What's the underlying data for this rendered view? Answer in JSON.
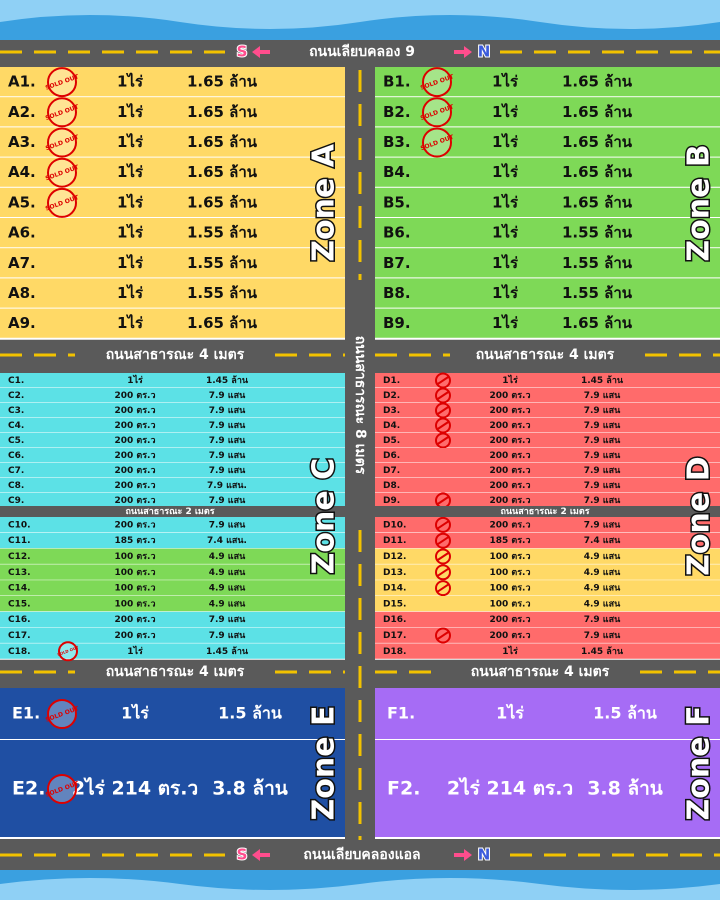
{
  "top_road": {
    "name": "ถนนเลียบคลอง 9"
  },
  "bottom_road": {
    "name": "ถนนเลียบคลองแอล"
  },
  "south": "S",
  "north": "N",
  "roads": {
    "public_4m": "ถนนสาธารณะ 4 เมตร",
    "public_8m": "ถนนสาธารณะ 8 เมตร",
    "public_2m": "ถนนสาธารณะ 2 เมตร"
  },
  "stamp": "SOLD OUT",
  "zones": [
    {
      "label": "Zone A",
      "color": "#ffd966",
      "blocks": [
        [
          {
            "lot": "A1.",
            "area": "1ไร่",
            "price": "1.65 ล้าน",
            "sold": true
          },
          {
            "lot": "A2.",
            "area": "1ไร่",
            "price": "1.65 ล้าน",
            "sold": true
          },
          {
            "lot": "A3.",
            "area": "1ไร่",
            "price": "1.65 ล้าน",
            "sold": true
          },
          {
            "lot": "A4.",
            "area": "1ไร่",
            "price": "1.65 ล้าน",
            "sold": true
          },
          {
            "lot": "A5.",
            "area": "1ไร่",
            "price": "1.65 ล้าน",
            "sold": true
          },
          {
            "lot": "A6.",
            "area": "1ไร่",
            "price": "1.55 ล้าน",
            "sold": false
          },
          {
            "lot": "A7.",
            "area": "1ไร่",
            "price": "1.55 ล้าน",
            "sold": false
          },
          {
            "lot": "A8.",
            "area": "1ไร่",
            "price": "1.55 ล้าน",
            "sold": false
          },
          {
            "lot": "A9.",
            "area": "1ไร่",
            "price": "1.65 ล้าน",
            "sold": false
          }
        ]
      ]
    },
    {
      "label": "Zone B",
      "color": "#7ed957",
      "blocks": [
        [
          {
            "lot": "B1.",
            "area": "1ไร่",
            "price": "1.65 ล้าน",
            "sold": true
          },
          {
            "lot": "B2.",
            "area": "1ไร่",
            "price": "1.65 ล้าน",
            "sold": true
          },
          {
            "lot": "B3.",
            "area": "1ไร่",
            "price": "1.65 ล้าน",
            "sold": true
          },
          {
            "lot": "B4.",
            "area": "1ไร่",
            "price": "1.65 ล้าน",
            "sold": false
          },
          {
            "lot": "B5.",
            "area": "1ไร่",
            "price": "1.65 ล้าน",
            "sold": false
          },
          {
            "lot": "B6.",
            "area": "1ไร่",
            "price": "1.55 ล้าน",
            "sold": false
          },
          {
            "lot": "B7.",
            "area": "1ไร่",
            "price": "1.55 ล้าน",
            "sold": false
          },
          {
            "lot": "B8.",
            "area": "1ไร่",
            "price": "1.55 ล้าน",
            "sold": false
          },
          {
            "lot": "B9.",
            "area": "1ไร่",
            "price": "1.65 ล้าน",
            "sold": false
          }
        ]
      ]
    },
    {
      "label": "Zone C",
      "color": "#5ce1e6",
      "blocks": [
        [
          {
            "lot": "C1.",
            "area": "1ไร่",
            "price": "1.45 ล้าน",
            "sold": false
          },
          {
            "lot": "C2.",
            "area": "200 ตร.ว",
            "price": "7.9 แสน",
            "sold": false
          },
          {
            "lot": "C3.",
            "area": "200 ตร.ว",
            "price": "7.9 แสน",
            "sold": false
          },
          {
            "lot": "C4.",
            "area": "200 ตร.ว",
            "price": "7.9 แสน",
            "sold": false
          },
          {
            "lot": "C5.",
            "area": "200 ตร.ว",
            "price": "7.9 แสน",
            "sold": false
          },
          {
            "lot": "C6.",
            "area": "200 ตร.ว",
            "price": "7.9 แสน",
            "sold": false
          },
          {
            "lot": "C7.",
            "area": "200 ตร.ว",
            "price": "7.9 แสน",
            "sold": false
          },
          {
            "lot": "C8.",
            "area": "200 ตร.ว",
            "price": "7.9 แสน.",
            "sold": false
          },
          {
            "lot": "C9.",
            "area": "200 ตร.ว",
            "price": "7.9 แสน",
            "sold": false
          }
        ],
        [
          {
            "lot": "C10.",
            "area": "200 ตร.ว",
            "price": "7.9 แสน",
            "sold": false
          },
          {
            "lot": "C11.",
            "area": "185 ตร.ว",
            "price": "7.4 แสน.",
            "sold": false
          },
          {
            "lot": "C12.",
            "area": "100 ตร.ว",
            "price": "4.9 แสน",
            "sold": false,
            "color": "#7ed957"
          },
          {
            "lot": "C13.",
            "area": "100 ตร.ว",
            "price": "4.9 แสน",
            "sold": false,
            "color": "#7ed957"
          },
          {
            "lot": "C14.",
            "area": "100 ตร.ว",
            "price": "4.9 แสน",
            "sold": false,
            "color": "#7ed957"
          },
          {
            "lot": "C15.",
            "area": "100 ตร.ว",
            "price": "4.9 แสน",
            "sold": false,
            "color": "#7ed957"
          },
          {
            "lot": "C16.",
            "area": "200 ตร.ว",
            "price": "7.9 แสน",
            "sold": false
          },
          {
            "lot": "C17.",
            "area": "200 ตร.ว",
            "price": "7.9 แสน",
            "sold": false
          },
          {
            "lot": "C18.",
            "area": "1ไร่",
            "price": "1.45 ล้าน",
            "sold": true
          }
        ]
      ]
    },
    {
      "label": "Zone D",
      "color": "#ff6b6b",
      "stamp_style": "circle",
      "blocks": [
        [
          {
            "lot": "D1.",
            "area": "1ไร่",
            "price": "1.45 ล้าน",
            "sold": true
          },
          {
            "lot": "D2.",
            "area": "200 ตร.ว",
            "price": "7.9 แสน",
            "sold": true
          },
          {
            "lot": "D3.",
            "area": "200 ตร.ว",
            "price": "7.9 แสน",
            "sold": true
          },
          {
            "lot": "D4.",
            "area": "200 ตร.ว",
            "price": "7.9 แสน",
            "sold": true
          },
          {
            "lot": "D5.",
            "area": "200 ตร.ว",
            "price": "7.9 แสน",
            "sold": true
          },
          {
            "lot": "D6.",
            "area": "200 ตร.ว",
            "price": "7.9 แสน",
            "sold": false
          },
          {
            "lot": "D7.",
            "area": "200 ตร.ว",
            "price": "7.9 แสน",
            "sold": false
          },
          {
            "lot": "D8.",
            "area": "200 ตร.ว",
            "price": "7.9 แสน",
            "sold": false
          },
          {
            "lot": "D9.",
            "area": "200 ตร.ว",
            "price": "7.9 แสน",
            "sold": true
          }
        ],
        [
          {
            "lot": "D10.",
            "area": "200 ตร.ว",
            "price": "7.9 แสน",
            "sold": true
          },
          {
            "lot": "D11.",
            "area": "185 ตร.ว",
            "price": "7.4 แสน",
            "sold": true
          },
          {
            "lot": "D12.",
            "area": "100 ตร.ว",
            "price": "4.9 แสน",
            "sold": true,
            "color": "#ffd966"
          },
          {
            "lot": "D13.",
            "area": "100 ตร.ว",
            "price": "4.9 แสน",
            "sold": true,
            "color": "#ffd966"
          },
          {
            "lot": "D14.",
            "area": "100 ตร.ว",
            "price": "4.9 แสน",
            "sold": true,
            "color": "#ffd966"
          },
          {
            "lot": "D15.",
            "area": "100 ตร.ว",
            "price": "4.9 แสน",
            "sold": false,
            "color": "#ffd966"
          },
          {
            "lot": "D16.",
            "area": "200 ตร.ว",
            "price": "7.9 แสน",
            "sold": false
          },
          {
            "lot": "D17.",
            "area": "200 ตร.ว",
            "price": "7.9 แสน",
            "sold": true
          },
          {
            "lot": "D18.",
            "area": "1ไร่",
            "price": "1.45 ล้าน",
            "sold": false
          }
        ]
      ]
    },
    {
      "label": "Zone E",
      "color": "#1f4fa3",
      "text_color": "#ffffff",
      "blocks": [
        [
          {
            "lot": "E1.",
            "area": "1ไร่",
            "price": "1.5 ล้าน",
            "sold": true
          },
          {
            "lot": "E2.",
            "area": "2ไร่ 214 ตร.ว",
            "price": "3.8 ล้าน",
            "sold": true
          }
        ]
      ]
    },
    {
      "label": "Zone F",
      "color": "#a66cf5",
      "text_color": "#ffffff",
      "blocks": [
        [
          {
            "lot": "F1.",
            "area": "1ไร่",
            "price": "1.5 ล้าน",
            "sold": false
          },
          {
            "lot": "F2.",
            "area": "2ไร่ 214 ตร.ว",
            "price": "3.8 ล้าน",
            "sold": false
          }
        ]
      ]
    }
  ]
}
